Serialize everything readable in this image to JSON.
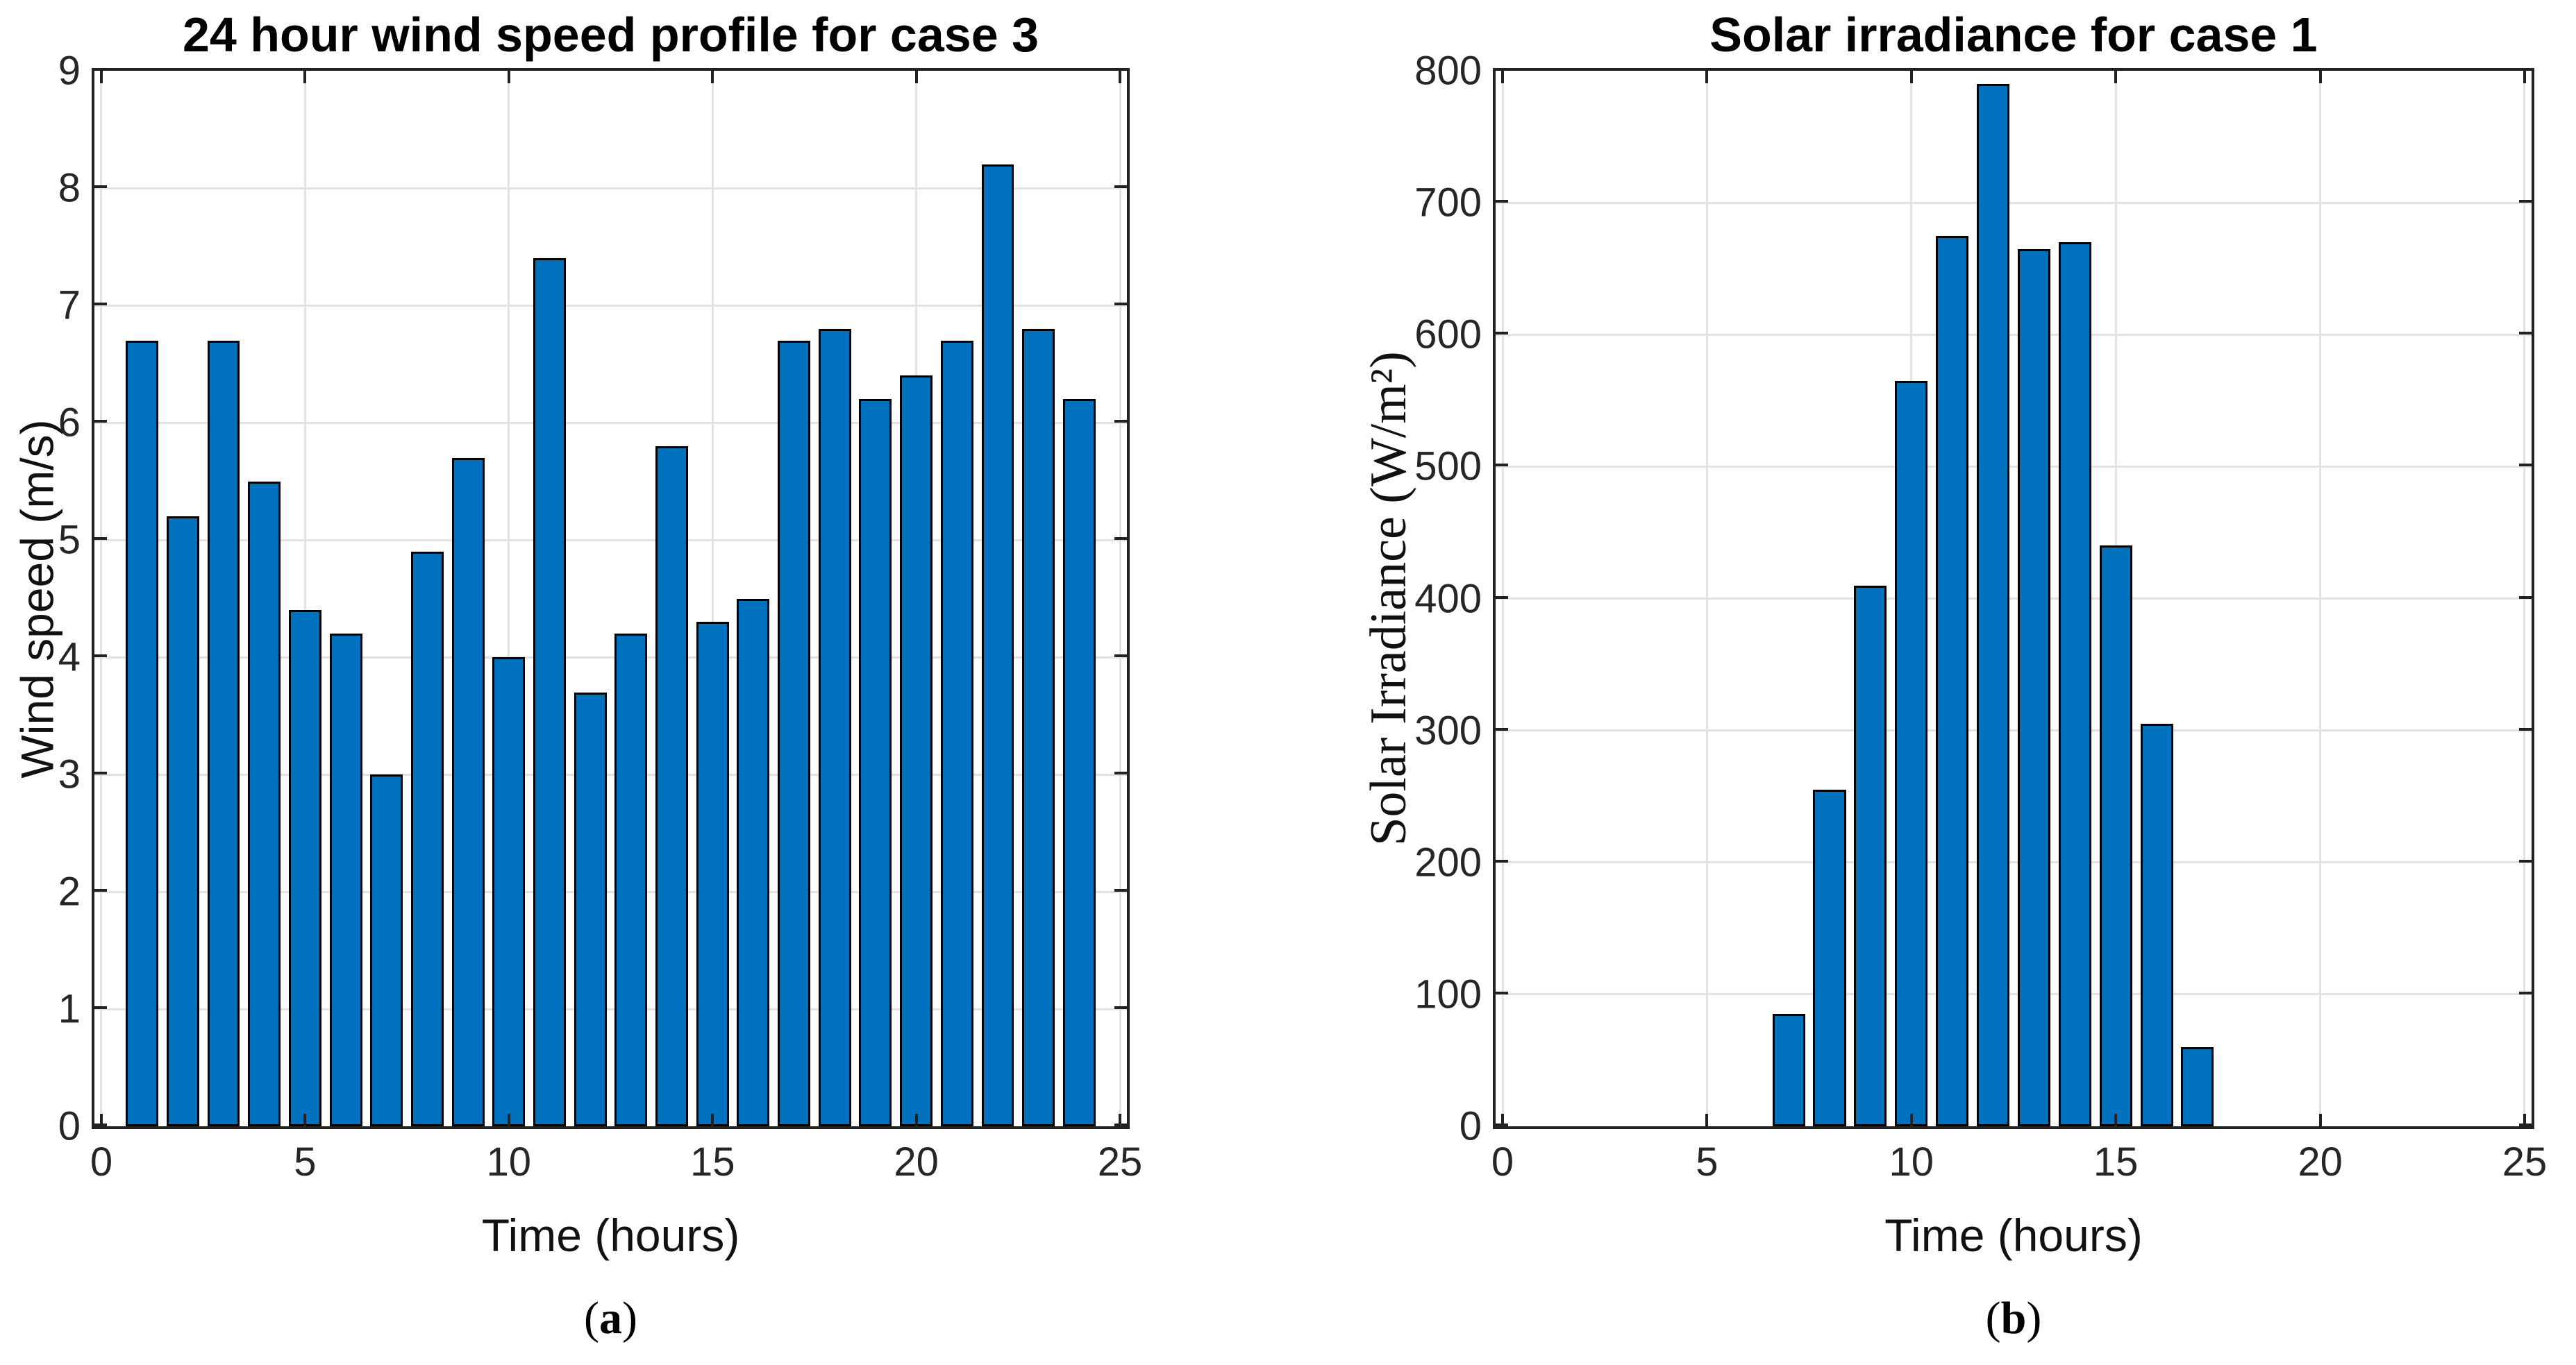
{
  "colors": {
    "bar_fill": "#0072BD",
    "bar_edge": "#000000",
    "grid": "#E2E2E2",
    "axis": "#222222"
  },
  "chart_data": [
    {
      "type": "bar",
      "title": "24 hour wind speed profile for case 3",
      "xlabel": "Time (hours)",
      "ylabel": "Wind speed (m/s)",
      "xlim": [
        0,
        25
      ],
      "ylim": [
        0,
        9
      ],
      "xticks": [
        0,
        5,
        10,
        15,
        20,
        25
      ],
      "yticks": [
        0,
        1,
        2,
        3,
        4,
        5,
        6,
        7,
        8,
        9
      ],
      "grid": true,
      "legend_position": "none",
      "bar_width": 0.8,
      "categories": [
        1,
        2,
        3,
        4,
        5,
        6,
        7,
        8,
        9,
        10,
        11,
        12,
        13,
        14,
        15,
        16,
        17,
        18,
        19,
        20,
        21,
        22,
        23,
        24
      ],
      "values": [
        6.7,
        5.2,
        6.7,
        5.5,
        4.4,
        4.2,
        3.0,
        4.9,
        5.7,
        4.0,
        7.4,
        3.7,
        4.2,
        5.8,
        4.3,
        4.5,
        6.7,
        6.8,
        6.2,
        6.4,
        6.7,
        8.2,
        6.8,
        6.2
      ],
      "caption": {
        "open": "(",
        "letter": "a",
        "close": ")"
      }
    },
    {
      "type": "bar",
      "title": "Solar irradiance for case 1",
      "xlabel": "Time (hours)",
      "ylabel": "Solar Irradiance (W/m²)",
      "xlim": [
        0,
        25
      ],
      "ylim": [
        0,
        800
      ],
      "xticks": [
        0,
        5,
        10,
        15,
        20,
        25
      ],
      "yticks": [
        0,
        100,
        200,
        300,
        400,
        500,
        600,
        700,
        800
      ],
      "grid": true,
      "legend_position": "none",
      "bar_width": 0.8,
      "categories": [
        7,
        8,
        9,
        10,
        11,
        12,
        13,
        14,
        15,
        16,
        17
      ],
      "values": [
        85,
        255,
        410,
        565,
        675,
        790,
        665,
        670,
        440,
        305,
        60
      ],
      "caption": {
        "open": "(",
        "letter": "b",
        "close": ")"
      }
    }
  ]
}
